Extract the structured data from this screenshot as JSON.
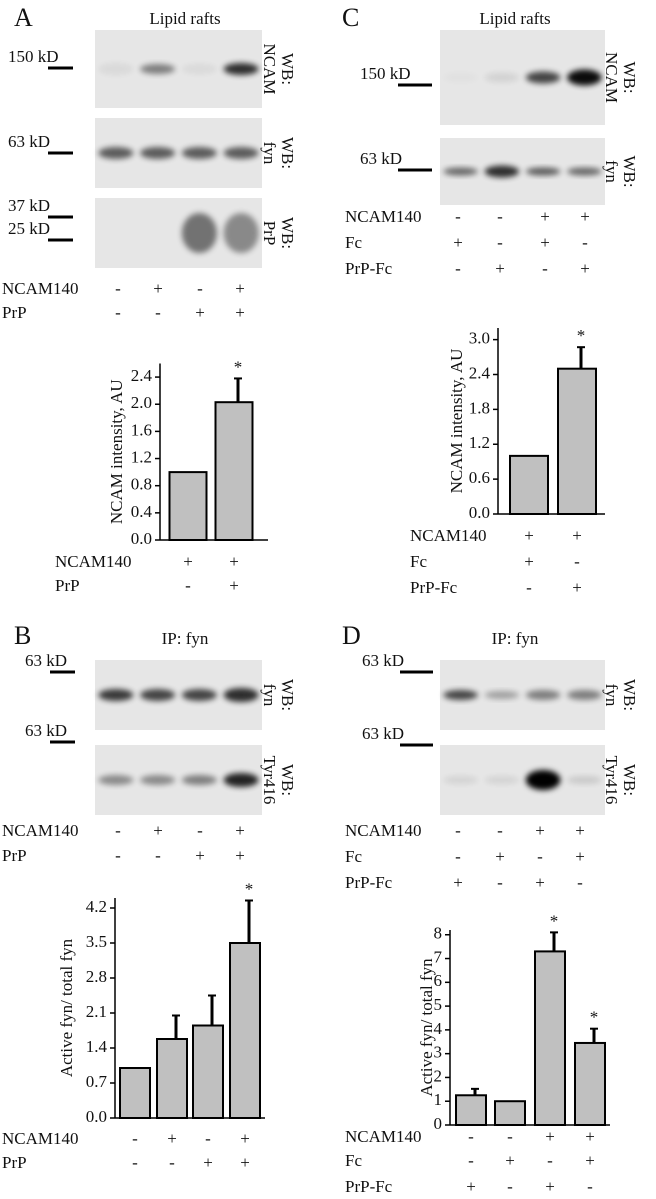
{
  "panels": [
    {
      "letter": "A",
      "title": "Lipid rafts",
      "blots": [
        {
          "markers": [
            "150 kD"
          ],
          "wb": "WB:",
          "target": "NCAM"
        },
        {
          "markers": [
            "63 kD"
          ],
          "wb": "WB:",
          "target": "fyn"
        },
        {
          "markers": [
            "37 kD",
            "25 kD"
          ],
          "wb": "WB:",
          "target": "PrP"
        }
      ],
      "conditions": [
        {
          "label": "NCAM140",
          "signs": [
            "-",
            "+",
            "-",
            "+"
          ]
        },
        {
          "label": "PrP",
          "signs": [
            "-",
            "-",
            "+",
            "+"
          ]
        }
      ]
    },
    {
      "letter": "C",
      "title": "Lipid rafts",
      "blots": [
        {
          "markers": [
            "150 kD"
          ],
          "wb": "WB:",
          "target": "NCAM"
        },
        {
          "markers": [
            "63 kD"
          ],
          "wb": "WB:",
          "target": "fyn"
        }
      ],
      "conditions": [
        {
          "label": "NCAM140",
          "signs": [
            "-",
            "-",
            "+",
            "+"
          ]
        },
        {
          "label": "Fc",
          "signs": [
            "+",
            "-",
            "+",
            "-"
          ]
        },
        {
          "label": "PrP-Fc",
          "signs": [
            "-",
            "+",
            "-",
            "+"
          ]
        }
      ]
    },
    {
      "letter": "B",
      "title": "IP: fyn",
      "blots": [
        {
          "markers": [
            "63 kD"
          ],
          "wb": "WB:",
          "target": "fyn"
        },
        {
          "markers": [
            "63 kD"
          ],
          "wb": "WB:",
          "target": "Tyr416"
        }
      ],
      "conditions": [
        {
          "label": "NCAM140",
          "signs": [
            "-",
            "+",
            "-",
            "+"
          ]
        },
        {
          "label": "PrP",
          "signs": [
            "-",
            "-",
            "+",
            "+"
          ]
        }
      ]
    },
    {
      "letter": "D",
      "title": "IP: fyn",
      "blots": [
        {
          "markers": [
            "63 kD"
          ],
          "wb": "WB:",
          "target": "fyn"
        },
        {
          "markers": [
            "63 kD"
          ],
          "wb": "WB:",
          "target": "Tyr416"
        }
      ],
      "conditions": [
        {
          "label": "NCAM140",
          "signs": [
            "-",
            "-",
            "+",
            "+"
          ]
        },
        {
          "label": "Fc",
          "signs": [
            "-",
            "+",
            "-",
            "+"
          ]
        },
        {
          "label": "PrP-Fc",
          "signs": [
            "+",
            "-",
            "+",
            "-"
          ]
        }
      ]
    }
  ],
  "chart_data": [
    {
      "type": "bar",
      "y_label": "NCAM intensity, AU",
      "color": "#c0c0c0",
      "ylim": [
        0,
        2.6
      ],
      "yticks": [
        {
          "value": 0,
          "label": "0.0"
        },
        0.4,
        0.8,
        1.2,
        1.6,
        {
          "value": 2,
          "label": "2.0"
        },
        2.4
      ],
      "values": [
        1.0,
        2.03
      ],
      "errors": [
        null,
        0.35
      ],
      "significance": [
        null,
        "*"
      ],
      "conditions": [
        {
          "label": "NCAM140",
          "signs": [
            "+",
            "+"
          ]
        },
        {
          "label": "PrP",
          "signs": [
            "-",
            "+"
          ]
        }
      ]
    },
    {
      "type": "bar",
      "y_label": "NCAM intensity, AU",
      "color": "#c0c0c0",
      "ylim": [
        0,
        3.2
      ],
      "yticks": [
        {
          "value": 0,
          "label": "0.0"
        },
        0.6,
        1.2,
        1.8,
        2.4,
        {
          "value": 3,
          "label": "3.0"
        }
      ],
      "values": [
        1.0,
        2.5
      ],
      "errors": [
        null,
        0.37
      ],
      "significance": [
        null,
        "*"
      ],
      "conditions": [
        {
          "label": "NCAM140",
          "signs": [
            "+",
            "+"
          ]
        },
        {
          "label": "Fc",
          "signs": [
            "+",
            "-"
          ]
        },
        {
          "label": "PrP-Fc",
          "signs": [
            "-",
            "+"
          ]
        }
      ]
    },
    {
      "type": "bar",
      "y_label": "Active fyn/ total fyn",
      "color": "#c0c0c0",
      "ylim": [
        0,
        4.4
      ],
      "yticks": [
        {
          "value": 0,
          "label": "0.0"
        },
        0.7,
        1.4,
        2.1,
        2.8,
        3.5,
        4.2
      ],
      "values": [
        1.0,
        1.58,
        1.85,
        3.5
      ],
      "errors": [
        null,
        0.47,
        0.6,
        0.85
      ],
      "significance": [
        null,
        null,
        null,
        "*"
      ],
      "conditions": [
        {
          "label": "NCAM140",
          "signs": [
            "-",
            "+",
            "-",
            "+"
          ]
        },
        {
          "label": "PrP",
          "signs": [
            "-",
            "-",
            "+",
            "+"
          ]
        }
      ]
    },
    {
      "type": "bar",
      "y_label": "Active fyn/ total fyn",
      "color": "#c0c0c0",
      "ylim": [
        0,
        8.2
      ],
      "yticks": [
        0,
        1,
        2,
        3,
        4,
        5,
        6,
        7,
        8
      ],
      "values": [
        1.25,
        1.0,
        7.3,
        3.45
      ],
      "errors": [
        0.27,
        null,
        0.8,
        0.6
      ],
      "significance": [
        null,
        null,
        "*",
        "*"
      ],
      "conditions": [
        {
          "label": "NCAM140",
          "signs": [
            "-",
            "-",
            "+",
            "+"
          ]
        },
        {
          "label": "Fc",
          "signs": [
            "-",
            "+",
            "-",
            "+"
          ]
        },
        {
          "label": "PrP-Fc",
          "signs": [
            "+",
            "-",
            "+",
            "-"
          ]
        }
      ]
    }
  ]
}
